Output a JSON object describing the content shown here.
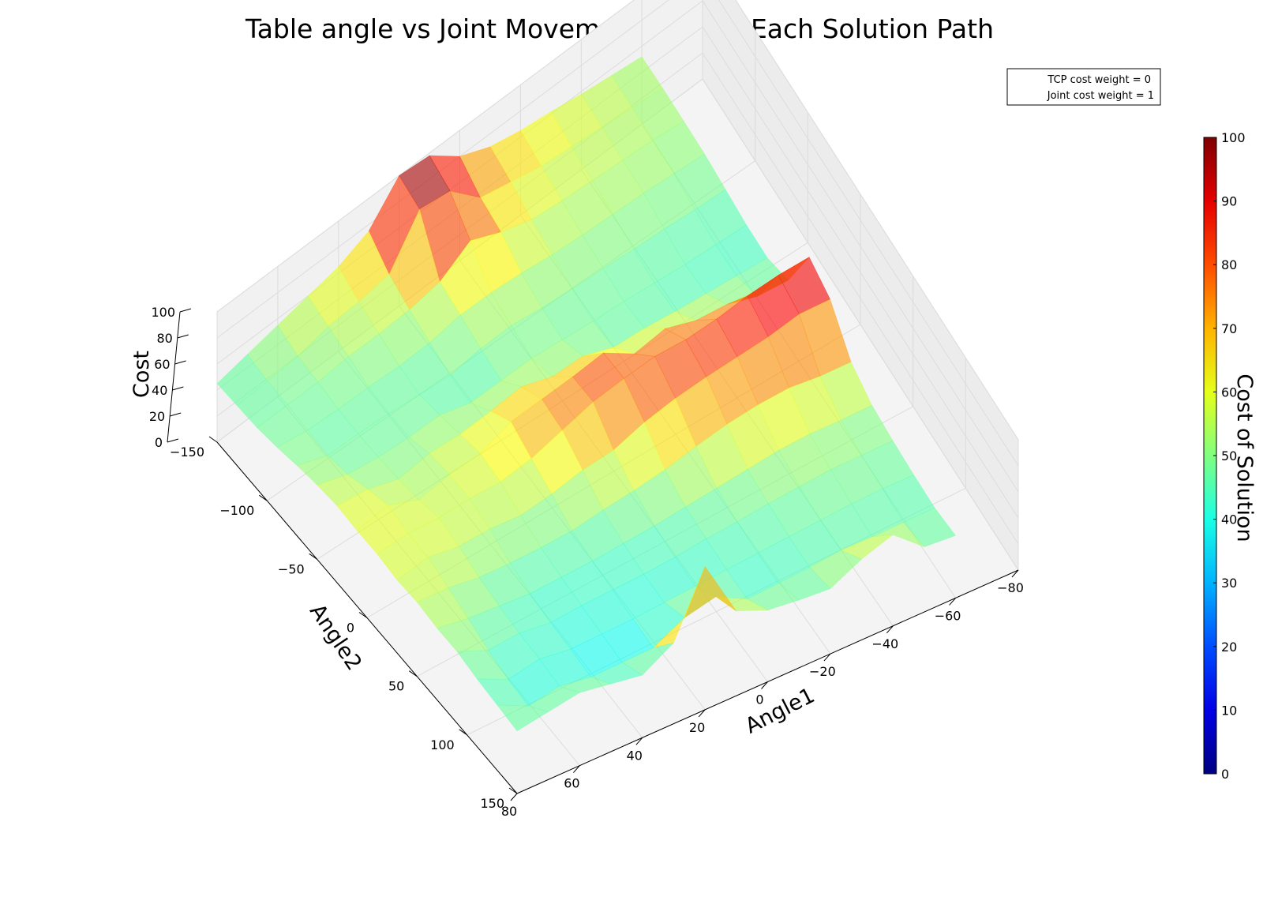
{
  "chart_data": {
    "type": "surface3d",
    "title": "Table angle vs Joint Movement Cost of Each Solution Path",
    "xlabel": "Angle1",
    "ylabel": "Angle2",
    "zlabel": "Cost",
    "colorbar_label": "Cost of Solution",
    "colormap": "jet",
    "alpha": 0.6,
    "xlim": [
      80,
      -80
    ],
    "ylim": [
      -150,
      150
    ],
    "zlim": [
      0,
      100
    ],
    "grid": true,
    "legend_placement": "top-right",
    "legend": [
      "TCP cost weight = 0",
      "Joint cost weight = 1"
    ],
    "x_ticks": [
      -80,
      -60,
      -40,
      -20,
      0,
      20,
      40,
      60,
      80
    ],
    "x_tick_labels": [
      "−80",
      "−60",
      "−40",
      "−20",
      "0",
      "20",
      "40",
      "60",
      "80"
    ],
    "y_ticks": [
      -150,
      -100,
      -50,
      0,
      50,
      100,
      150
    ],
    "y_tick_labels": [
      "−150",
      "−100",
      "−50",
      "0",
      "50",
      "100",
      "150"
    ],
    "z_ticks": [
      0,
      20,
      40,
      60,
      80,
      100
    ],
    "z_tick_labels": [
      "0",
      "20",
      "40",
      "60",
      "80",
      "100"
    ],
    "colorbar_ticks": [
      0,
      10,
      20,
      30,
      40,
      50,
      60,
      70,
      80,
      90,
      100
    ],
    "colorbar_tick_labels": [
      "0",
      "10",
      "20",
      "30",
      "40",
      "50",
      "60",
      "70",
      "80",
      "90",
      "100"
    ],
    "angle1": [
      80,
      70,
      60,
      50,
      40,
      30,
      20,
      10,
      0,
      -10,
      -20,
      -30,
      -40,
      -50,
      -60
    ],
    "angle2": [
      -150,
      -130,
      -110,
      -90,
      -70,
      -50,
      -30,
      -10,
      10,
      30,
      50,
      70,
      90,
      110,
      130,
      150
    ],
    "cost": [
      [
        45,
        46,
        47,
        50,
        54,
        57,
        59,
        58,
        58,
        56,
        57,
        55,
        55,
        52,
        50,
        48
      ],
      [
        50,
        48,
        48,
        47,
        46,
        50,
        57,
        63,
        60,
        60,
        55,
        50,
        44,
        40,
        38,
        52
      ],
      [
        55,
        50,
        49,
        47,
        47,
        48,
        50,
        53,
        58,
        55,
        50,
        47,
        45,
        44,
        42,
        56
      ],
      [
        60,
        56,
        52,
        48,
        47,
        48,
        55,
        58,
        59,
        55,
        48,
        44,
        41,
        40,
        38,
        52
      ],
      [
        65,
        58,
        53,
        48,
        46,
        50,
        55,
        60,
        58,
        52,
        47,
        44,
        42,
        40,
        38,
        48
      ],
      [
        75,
        62,
        55,
        50,
        45,
        44,
        58,
        70,
        62,
        55,
        47,
        44,
        42,
        40,
        38,
        62
      ],
      [
        100,
        95,
        60,
        55,
        50,
        46,
        62,
        73,
        70,
        60,
        50,
        45,
        42,
        41,
        50,
        110
      ],
      [
        98,
        92,
        75,
        56,
        52,
        48,
        55,
        76,
        78,
        62,
        52,
        46,
        43,
        42,
        55,
        65
      ],
      [
        80,
        70,
        65,
        55,
        50,
        47,
        56,
        80,
        82,
        70,
        55,
        48,
        45,
        43,
        42,
        55
      ],
      [
        70,
        65,
        58,
        53,
        49,
        46,
        48,
        65,
        85,
        75,
        60,
        50,
        46,
        44,
        43,
        52
      ],
      [
        65,
        60,
        56,
        52,
        49,
        46,
        48,
        70,
        84,
        78,
        64,
        52,
        48,
        45,
        44,
        50
      ],
      [
        62,
        58,
        55,
        52,
        48,
        45,
        46,
        62,
        86,
        80,
        66,
        54,
        49,
        46,
        46,
        62
      ],
      [
        58,
        56,
        54,
        52,
        48,
        44,
        45,
        60,
        90,
        82,
        66,
        54,
        50,
        47,
        45,
        70
      ],
      [
        55,
        54,
        53,
        51,
        47,
        44,
        44,
        52,
        92,
        86,
        62,
        52,
        49,
        47,
        45,
        50
      ],
      [
        52,
        52,
        51,
        50,
        47,
        44,
        43,
        50,
        92,
        84,
        60,
        51,
        48,
        46,
        45,
        48
      ]
    ]
  }
}
